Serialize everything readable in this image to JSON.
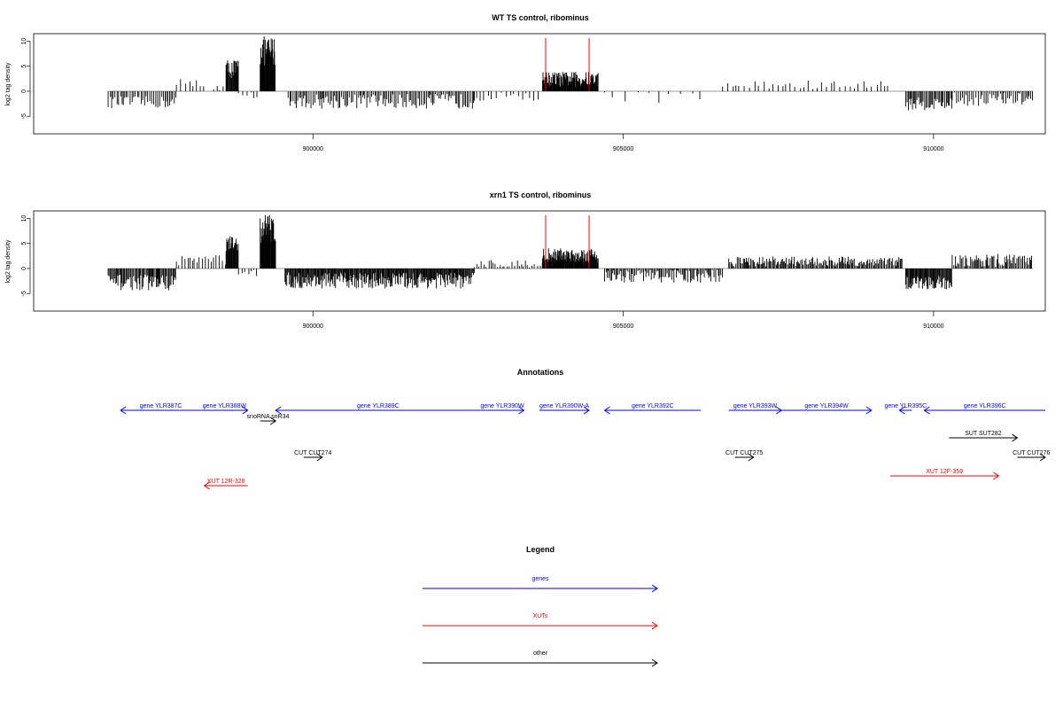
{
  "chart_data": [
    {
      "type": "bar",
      "title": "WT TS control, ribominus",
      "xlabel": "",
      "ylabel": "log2 tag density",
      "x_ticks": [
        900000,
        905000,
        910000
      ],
      "x_tick_labels": [
        "900000",
        "905000",
        "910000"
      ],
      "y_ticks": [
        -5,
        0,
        5,
        10
      ],
      "y_tick_labels": [
        "-5",
        "0",
        "5",
        "10"
      ],
      "xlim": [
        895500,
        911800
      ],
      "ylim": [
        -8.5,
        11.5
      ],
      "data_range": [
        896700,
        911600
      ],
      "marker_color": "#ff0000",
      "markers_x": [
        903750,
        904450
      ],
      "segments": [
        {
          "x0": 896700,
          "x1": 897800,
          "mean": -2.2,
          "amp": 1.2,
          "step": 30,
          "sign": -1
        },
        {
          "x0": 897800,
          "x1": 898300,
          "mean": 1.5,
          "amp": 1.2,
          "step": 60,
          "sign": 1
        },
        {
          "x0": 898400,
          "x1": 898600,
          "mean": 0.8,
          "amp": 0.6,
          "step": 60,
          "sign": 1
        },
        {
          "x0": 898600,
          "x1": 898800,
          "mean": 4.5,
          "amp": 2.0,
          "step": 10,
          "sign": 1
        },
        {
          "x0": 898800,
          "x1": 899150,
          "mean": -0.8,
          "amp": 0.8,
          "step": 60,
          "sign": -1
        },
        {
          "x0": 899150,
          "x1": 899400,
          "mean": 8.0,
          "amp": 3.0,
          "step": 8,
          "sign": 1
        },
        {
          "x0": 899600,
          "x1": 902600,
          "mean": -2.0,
          "amp": 1.5,
          "step": 25,
          "sign": -1
        },
        {
          "x0": 902600,
          "x1": 903700,
          "mean": -1.0,
          "amp": 1.0,
          "step": 60,
          "sign": -1
        },
        {
          "x0": 903700,
          "x1": 904600,
          "mean": 2.4,
          "amp": 1.5,
          "step": 8,
          "sign": 1
        },
        {
          "x0": 904700,
          "x1": 906300,
          "mean": -0.8,
          "amp": 1.5,
          "step": 160,
          "sign": -1
        },
        {
          "x0": 906600,
          "x1": 909300,
          "mean": 1.2,
          "amp": 1.0,
          "step": 70,
          "sign": 1
        },
        {
          "x0": 909550,
          "x1": 910300,
          "mean": -2.5,
          "amp": 1.3,
          "step": 20,
          "sign": -1
        },
        {
          "x0": 910300,
          "x1": 911600,
          "mean": -1.6,
          "amp": 1.4,
          "step": 30,
          "sign": -1
        }
      ]
    },
    {
      "type": "bar",
      "title": "xrn1 TS control, ribominus",
      "xlabel": "",
      "ylabel": "log2 tag density",
      "x_ticks": [
        900000,
        905000,
        910000
      ],
      "x_tick_labels": [
        "900000",
        "905000",
        "910000"
      ],
      "y_ticks": [
        -5,
        0,
        5,
        10
      ],
      "y_tick_labels": [
        "-5",
        "0",
        "5",
        "10"
      ],
      "xlim": [
        895500,
        911800
      ],
      "ylim": [
        -8.5,
        11.5
      ],
      "data_range": [
        896700,
        911600
      ],
      "marker_color": "#ff0000",
      "markers_x": [
        903750,
        904450
      ],
      "segments": [
        {
          "x0": 896700,
          "x1": 897800,
          "mean": -2.8,
          "amp": 1.6,
          "step": 15,
          "sign": -1
        },
        {
          "x0": 897800,
          "x1": 898600,
          "mean": 1.8,
          "amp": 1.2,
          "step": 40,
          "sign": 1
        },
        {
          "x0": 898600,
          "x1": 898800,
          "mean": 4.5,
          "amp": 2.0,
          "step": 10,
          "sign": 1
        },
        {
          "x0": 898800,
          "x1": 899150,
          "mean": -0.8,
          "amp": 0.8,
          "step": 50,
          "sign": -1
        },
        {
          "x0": 899150,
          "x1": 899400,
          "mean": 8.0,
          "amp": 3.0,
          "step": 8,
          "sign": 1
        },
        {
          "x0": 899550,
          "x1": 902600,
          "mean": -2.4,
          "amp": 1.6,
          "step": 12,
          "sign": -1
        },
        {
          "x0": 902600,
          "x1": 903700,
          "mean": 0.6,
          "amp": 1.2,
          "step": 40,
          "sign": 1
        },
        {
          "x0": 903700,
          "x1": 904600,
          "mean": 2.6,
          "amp": 1.5,
          "step": 8,
          "sign": 1
        },
        {
          "x0": 904700,
          "x1": 906600,
          "mean": -1.5,
          "amp": 1.4,
          "step": 20,
          "sign": -1
        },
        {
          "x0": 906700,
          "x1": 909500,
          "mean": 1.4,
          "amp": 1.0,
          "step": 18,
          "sign": 1
        },
        {
          "x0": 909550,
          "x1": 910300,
          "mean": -2.8,
          "amp": 1.4,
          "step": 12,
          "sign": -1
        },
        {
          "x0": 910300,
          "x1": 911600,
          "mean": 1.5,
          "amp": 1.4,
          "step": 20,
          "sign": 1
        }
      ]
    }
  ],
  "annotations": {
    "title": "Annotations",
    "xlim": [
      895500,
      911800
    ],
    "colors": {
      "gene": "#0000ff",
      "xut": "#ff0000",
      "other": "#000000"
    },
    "rows": [
      [
        {
          "label": "gene YLR387C",
          "start": 896900,
          "end": 898200,
          "strand": "-",
          "kind": "gene"
        },
        {
          "label": "gene YLR388W",
          "start": 898200,
          "end": 898950,
          "strand": "+",
          "kind": "gene"
        },
        {
          "label": "gene YLR389C",
          "start": 899400,
          "end": 902700,
          "strand": "-",
          "kind": "gene"
        },
        {
          "label": "gene YLR390W",
          "start": 902700,
          "end": 903400,
          "strand": "+",
          "kind": "gene"
        },
        {
          "label": "gene YLR390W-A",
          "start": 903650,
          "end": 904450,
          "strand": "+",
          "kind": "gene"
        },
        {
          "label": "gene YLR392C",
          "start": 904700,
          "end": 906250,
          "strand": "-",
          "kind": "gene"
        },
        {
          "label": "gene YLR393W",
          "start": 906700,
          "end": 907550,
          "strand": "+",
          "kind": "gene"
        },
        {
          "label": "gene YLR394W",
          "start": 907550,
          "end": 909000,
          "strand": "+",
          "kind": "gene"
        },
        {
          "label": "gene YLR395C",
          "start": 909450,
          "end": 909650,
          "strand": "-",
          "kind": "gene"
        },
        {
          "label": "gene YLR396C",
          "start": 909850,
          "end": 911800,
          "strand": "-",
          "kind": "gene"
        }
      ],
      [
        {
          "label": "snoRNA snR34",
          "start": 899150,
          "end": 899400,
          "strand": "+",
          "kind": "other"
        }
      ],
      [
        {
          "label": "SUT SUT282",
          "start": 910250,
          "end": 911350,
          "strand": "+",
          "kind": "other"
        }
      ],
      [
        {
          "label": "CUT CUT274",
          "start": 899850,
          "end": 900150,
          "strand": "+",
          "kind": "other"
        },
        {
          "label": "CUT CUT275",
          "start": 906800,
          "end": 907100,
          "strand": "+",
          "kind": "other"
        },
        {
          "label": "CUT CUT276",
          "start": 911350,
          "end": 911800,
          "strand": "+",
          "kind": "other"
        }
      ],
      [
        {
          "label": "XUT 12F-359",
          "start": 909300,
          "end": 911050,
          "strand": "+",
          "kind": "xut"
        }
      ],
      [
        {
          "label": "XUT 12R-328",
          "start": 898250,
          "end": 898950,
          "strand": "-",
          "kind": "xut"
        }
      ]
    ]
  },
  "legend": {
    "title": "Legend",
    "items": [
      {
        "label": "genes",
        "color": "#0000ff"
      },
      {
        "label": "XUTs",
        "color": "#ff0000"
      },
      {
        "label": "other",
        "color": "#000000"
      }
    ]
  }
}
